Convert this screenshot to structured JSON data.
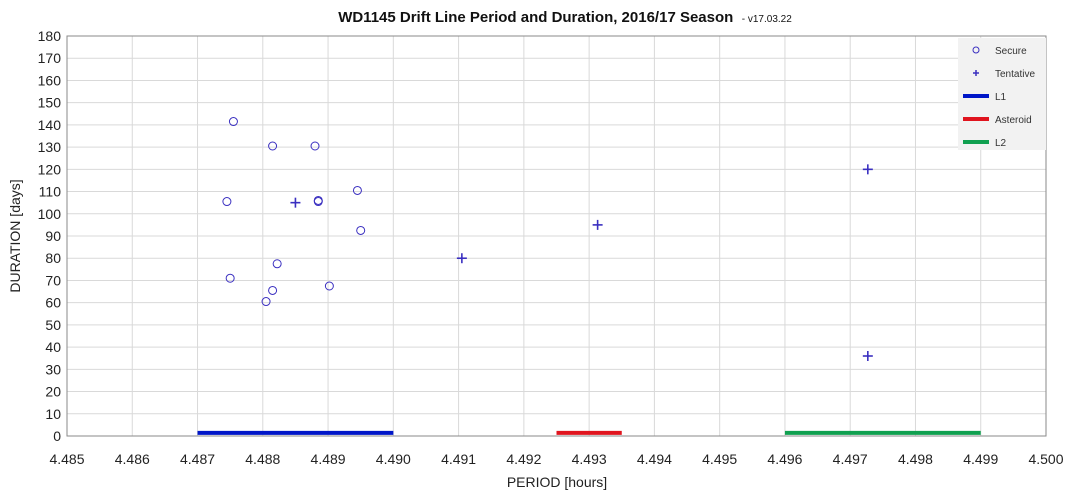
{
  "chart_data": {
    "type": "scatter",
    "title": "WD1145 Drift Line Period and Duration, 2016/17 Season",
    "subtitle": "- v17.03.22",
    "xlabel": "PERIOD [hours]",
    "ylabel": "DURATION [days]",
    "xlim": [
      4.485,
      4.5
    ],
    "ylim": [
      0,
      180
    ],
    "x_ticks": [
      "4.485",
      "4.486",
      "4.487",
      "4.488",
      "4.489",
      "4.490",
      "4.491",
      "4.492",
      "4.493",
      "4.494",
      "4.495",
      "4.496",
      "4.497",
      "4.498",
      "4.499",
      "4.500"
    ],
    "y_ticks": [
      "0",
      "10",
      "20",
      "30",
      "40",
      "50",
      "60",
      "70",
      "80",
      "90",
      "100",
      "110",
      "120",
      "130",
      "140",
      "150",
      "160",
      "170",
      "180"
    ],
    "grid": true,
    "legend_position": "top-right",
    "series": [
      {
        "name": "Secure",
        "marker": "circle",
        "color": "#3a2fc0",
        "points": [
          {
            "x": 4.48755,
            "y": 141.5
          },
          {
            "x": 4.48815,
            "y": 130.5
          },
          {
            "x": 4.4888,
            "y": 130.5
          },
          {
            "x": 4.48745,
            "y": 105.5
          },
          {
            "x": 4.48885,
            "y": 106.0
          },
          {
            "x": 4.48885,
            "y": 105.5
          },
          {
            "x": 4.48945,
            "y": 110.5
          },
          {
            "x": 4.4895,
            "y": 92.5
          },
          {
            "x": 4.48822,
            "y": 77.5
          },
          {
            "x": 4.4875,
            "y": 71.0
          },
          {
            "x": 4.48815,
            "y": 65.5
          },
          {
            "x": 4.48902,
            "y": 67.5
          },
          {
            "x": 4.48805,
            "y": 60.5
          }
        ]
      },
      {
        "name": "Tentative",
        "marker": "plus",
        "color": "#3a2fc0",
        "points": [
          {
            "x": 4.4885,
            "y": 105.0
          },
          {
            "x": 4.49105,
            "y": 80.0
          },
          {
            "x": 4.49313,
            "y": 95.0
          },
          {
            "x": 4.49727,
            "y": 120.0
          },
          {
            "x": 4.49727,
            "y": 36.0
          }
        ]
      },
      {
        "name": "L1",
        "marker": "line",
        "color": "#0016c8",
        "x": [
          4.487,
          4.49
        ],
        "y": [
          0.5,
          0.5
        ]
      },
      {
        "name": "Asteroid",
        "marker": "line",
        "color": "#e0141e",
        "x": [
          4.4925,
          4.4935
        ],
        "y": [
          0.5,
          0.5
        ]
      },
      {
        "name": "L2",
        "marker": "line",
        "color": "#10a050",
        "x": [
          4.496,
          4.499
        ],
        "y": [
          0.5,
          0.5
        ]
      }
    ]
  }
}
